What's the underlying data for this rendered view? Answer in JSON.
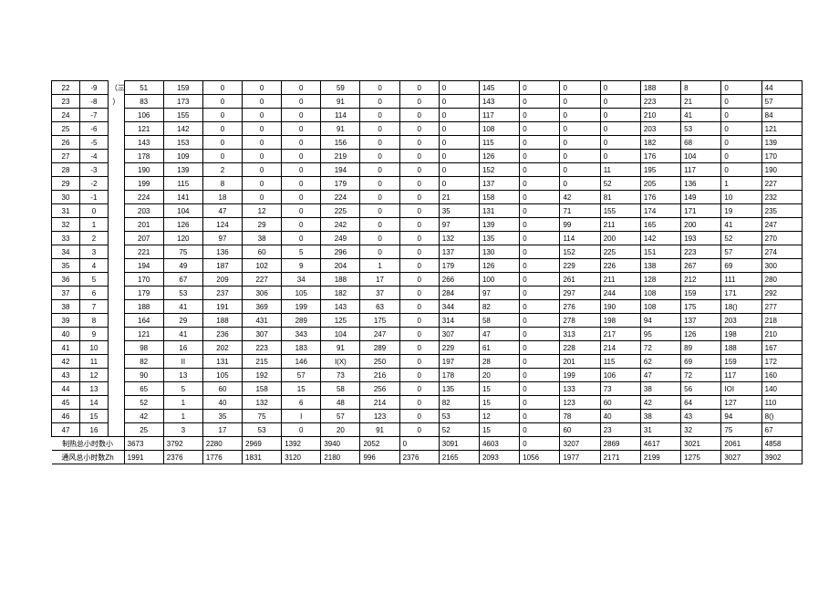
{
  "colors": {
    "border": "#000000",
    "bg": "#ffffff",
    "text": "#000000"
  },
  "gap_text": "（三",
  "gap_text2": "）",
  "rows": [
    {
      "idx": "22",
      "t": "-9",
      "v": [
        "51",
        "159",
        "0",
        "0",
        "0",
        "59",
        "0",
        "0",
        "0",
        "145",
        "0",
        "0",
        "0",
        "188",
        "8",
        "0",
        "44"
      ]
    },
    {
      "idx": "23",
      "t": "-8",
      "v": [
        "83",
        "173",
        "0",
        "0",
        "0",
        "91",
        "0",
        "0",
        "0",
        "143",
        "0",
        "0",
        "0",
        "223",
        "21",
        "0",
        "57"
      ]
    },
    {
      "idx": "24",
      "t": "-7",
      "v": [
        "106",
        "155",
        "0",
        "0",
        "0",
        "114",
        "0",
        "0",
        "0",
        "117",
        "0",
        "0",
        "0",
        "210",
        "41",
        "0",
        "84"
      ]
    },
    {
      "idx": "25",
      "t": "-6",
      "v": [
        "121",
        "142",
        "0",
        "0",
        "0",
        "91",
        "0",
        "0",
        "0",
        "108",
        "0",
        "0",
        "0",
        "203",
        "53",
        "0",
        "121"
      ]
    },
    {
      "idx": "26",
      "t": "-5",
      "v": [
        "143",
        "153",
        "0",
        "0",
        "0",
        "156",
        "0",
        "0",
        "0",
        "115",
        "0",
        "0",
        "0",
        "182",
        "68",
        "0",
        "139"
      ]
    },
    {
      "idx": "27",
      "t": "-4",
      "v": [
        "178",
        "109",
        "0",
        "0",
        "0",
        "219",
        "0",
        "0",
        "0",
        "126",
        "0",
        "0",
        "0",
        "176",
        "104",
        "0",
        "170"
      ]
    },
    {
      "idx": "28",
      "t": "-3",
      "v": [
        "190",
        "139",
        "2",
        "0",
        "0",
        "194",
        "0",
        "0",
        "0",
        "152",
        "0",
        "0",
        "11",
        "195",
        "117",
        "0",
        "190"
      ]
    },
    {
      "idx": "29",
      "t": "-2",
      "v": [
        "199",
        "115",
        "8",
        "0",
        "0",
        "179",
        "0",
        "0",
        "0",
        "137",
        "0",
        "0",
        "52",
        "205",
        "136",
        "1",
        "227"
      ]
    },
    {
      "idx": "30",
      "t": "-1",
      "v": [
        "224",
        "141",
        "18",
        "0",
        "0",
        "224",
        "0",
        "0",
        "21",
        "158",
        "0",
        "42",
        "81",
        "176",
        "149",
        "10",
        "232"
      ]
    },
    {
      "idx": "31",
      "t": "0",
      "v": [
        "203",
        "104",
        "47",
        "12",
        "0",
        "225",
        "0",
        "0",
        "35",
        "131",
        "0",
        "71",
        "155",
        "174",
        "171",
        "19",
        "235"
      ]
    },
    {
      "idx": "32",
      "t": "1",
      "v": [
        "201",
        "126",
        "124",
        "29",
        "0",
        "242",
        "0",
        "0",
        "97",
        "139",
        "0",
        "99",
        "211",
        "165",
        "200",
        "41",
        "247"
      ]
    },
    {
      "idx": "33",
      "t": "2",
      "v": [
        "207",
        "120",
        "97",
        "38",
        "0",
        "249",
        "0",
        "0",
        "132",
        "135",
        "0",
        "114",
        "200",
        "142",
        "193",
        "52",
        "270"
      ]
    },
    {
      "idx": "34",
      "t": "3",
      "v": [
        "221",
        "75",
        "136",
        "60",
        "5",
        "296",
        "0",
        "0",
        "137",
        "130",
        "0",
        "152",
        "225",
        "151",
        "223",
        "57",
        "274"
      ]
    },
    {
      "idx": "35",
      "t": "4",
      "v": [
        "194",
        "49",
        "187",
        "102",
        "9",
        "204",
        "1",
        "0",
        "179",
        "126",
        "0",
        "229",
        "226",
        "138",
        "267",
        "69",
        "300"
      ]
    },
    {
      "idx": "36",
      "t": "5",
      "v": [
        "170",
        "67",
        "209",
        "227",
        "34",
        "188",
        "17",
        "0",
        "266",
        "100",
        "0",
        "261",
        "211",
        "128",
        "212",
        "111",
        "280"
      ]
    },
    {
      "idx": "37",
      "t": "6",
      "v": [
        "179",
        "53",
        "237",
        "306",
        "105",
        "182",
        "37",
        "0",
        "284",
        "97",
        "0",
        "297",
        "244",
        "108",
        "159",
        "171",
        "292"
      ]
    },
    {
      "idx": "38",
      "t": "7",
      "v": [
        "188",
        "41",
        "191",
        "369",
        "199",
        "143",
        "63",
        "0",
        "344",
        "82",
        "0",
        "276",
        "190",
        "108",
        "175",
        "18()",
        "277"
      ]
    },
    {
      "idx": "39",
      "t": "8",
      "v": [
        "164",
        "29",
        "188",
        "431",
        "289",
        "125",
        "175",
        "0",
        "314",
        "58",
        "0",
        "278",
        "198",
        "94",
        "137",
        "203",
        "218"
      ]
    },
    {
      "idx": "40",
      "t": "9",
      "v": [
        "121",
        "41",
        "236",
        "307",
        "343",
        "104",
        "247",
        "0",
        "307",
        "47",
        "0",
        "313",
        "217",
        "95",
        "126",
        "198",
        "210"
      ]
    },
    {
      "idx": "41",
      "t": "10",
      "v": [
        "98",
        "16",
        "202",
        "223",
        "183",
        "91",
        "289",
        "0",
        "229",
        "61",
        "0",
        "228",
        "214",
        "72",
        "89",
        "188",
        "167"
      ]
    },
    {
      "idx": "42",
      "t": "11",
      "v": [
        "82",
        "II",
        "131",
        "215",
        "146",
        "I(X)",
        "250",
        "0",
        "197",
        "28",
        "0",
        "201",
        "115",
        "62",
        "69",
        "159",
        "172"
      ]
    },
    {
      "idx": "43",
      "t": "12",
      "v": [
        "90",
        "13",
        "105",
        "192",
        "57",
        "73",
        "216",
        "0",
        "178",
        "20",
        "0",
        "199",
        "106",
        "47",
        "72",
        "117",
        "160"
      ]
    },
    {
      "idx": "44",
      "t": "13",
      "v": [
        "65",
        "5",
        "60",
        "158",
        "15",
        "58",
        "256",
        "0",
        "135",
        "15",
        "0",
        "133",
        "73",
        "38",
        "56",
        "IOI",
        "140"
      ]
    },
    {
      "idx": "45",
      "t": "14",
      "v": [
        "52",
        "1",
        "40",
        "132",
        "6",
        "48",
        "214",
        "0",
        "82",
        "15",
        "0",
        "123",
        "60",
        "42",
        "64",
        "127",
        "110"
      ]
    },
    {
      "idx": "46",
      "t": "15",
      "v": [
        "42",
        "1",
        "35",
        "75",
        "I",
        "57",
        "123",
        "0",
        "53",
        "12",
        "0",
        "78",
        "40",
        "38",
        "43",
        "94",
        "8()"
      ]
    },
    {
      "idx": "47",
      "t": "16",
      "v": [
        "25",
        "3",
        "17",
        "53",
        "0",
        "20",
        "91",
        "0",
        "52",
        "15",
        "0",
        "60",
        "23",
        "31",
        "32",
        "75",
        "67"
      ]
    }
  ],
  "footer": [
    {
      "label": "制热总小时数小",
      "v": [
        "3673",
        "3792",
        "2280",
        "2969",
        "1392",
        "3940",
        "2052",
        "0",
        "3091",
        "4603",
        "0",
        "3207",
        "2869",
        "4617",
        "3021",
        "2061",
        "4858"
      ]
    },
    {
      "label": "通风总小时数Zh",
      "v": [
        "1991",
        "2376",
        "1776",
        "1831",
        "3120",
        "2180",
        "996",
        "2376",
        "2165",
        "2093",
        "1056",
        "1977",
        "2171",
        "2199",
        "1275",
        "3027",
        "3902"
      ]
    }
  ]
}
